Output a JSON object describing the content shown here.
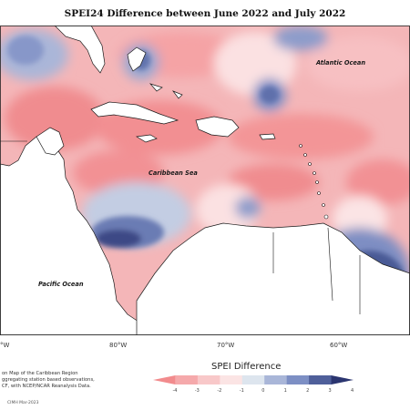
{
  "title": "SPEI24 Difference between June 2022 and July 2022",
  "labels": {
    "atlantic": "Atlantic Ocean",
    "caribbean": "Caribbean Sea",
    "pacific": "Pacific Ocean"
  },
  "lon_ticks": [
    "°W",
    "80°W",
    "70°W",
    "60°W"
  ],
  "credits": [
    "on Map of the Caribbean Region",
    "ggregating station based observations,",
    "CF, with NCEP/NCAR Reanalysis Data."
  ],
  "footer": "CIMH Mar-2023",
  "legend": {
    "title": "SPEI Difference",
    "ticks": [
      "-4",
      "-3",
      "-2",
      "-1",
      "0",
      "1",
      "2",
      "3",
      "4"
    ],
    "colors": [
      "#f28b8d",
      "#f5a9ab",
      "#f8c8c9",
      "#fbe4e4",
      "#dde5ee",
      "#a9b6d8",
      "#7d8fc4",
      "#4f5f9a",
      "#2b3570"
    ]
  },
  "colors": {
    "background_anomaly": "#f4b6b8",
    "land": "#ffffff",
    "coast": "#1a1a1a"
  }
}
